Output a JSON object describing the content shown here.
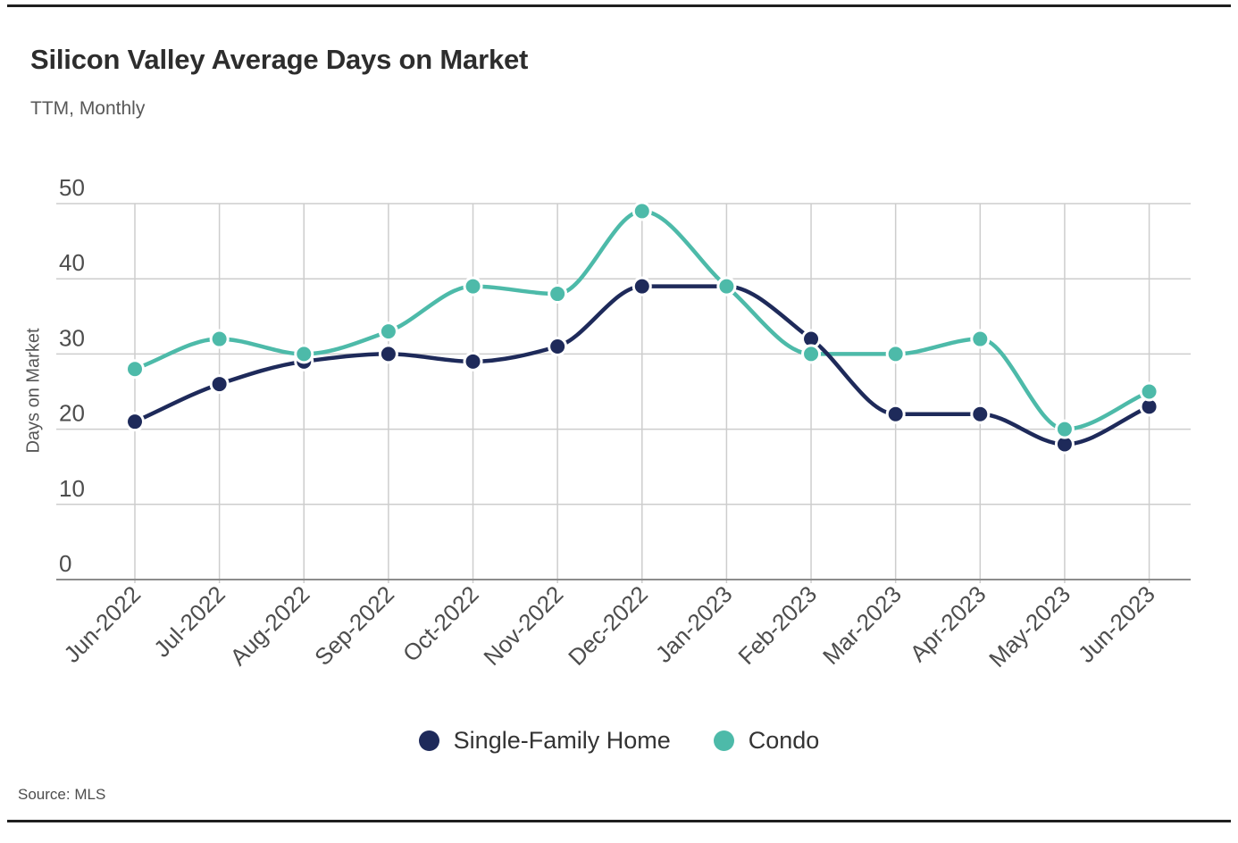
{
  "header": {
    "title": "Silicon Valley Average Days on Market",
    "subtitle": "TTM, Monthly"
  },
  "chart_data": {
    "type": "line",
    "title": "Silicon Valley Average Days on Market",
    "subtitle": "TTM, Monthly",
    "xlabel": "",
    "ylabel": "Days on Market",
    "ylim": [
      0,
      50
    ],
    "yticks": [
      0,
      10,
      20,
      30,
      40,
      50
    ],
    "grid": true,
    "legend_position": "bottom",
    "categories": [
      "Jun-2022",
      "Jul-2022",
      "Aug-2022",
      "Sep-2022",
      "Oct-2022",
      "Nov-2022",
      "Dec-2022",
      "Jan-2023",
      "Feb-2023",
      "Mar-2023",
      "Apr-2023",
      "May-2023",
      "Jun-2023"
    ],
    "series": [
      {
        "name": "Single-Family Home",
        "color": "#1e2a5a",
        "values": [
          21,
          26,
          29,
          30,
          29,
          31,
          39,
          39,
          32,
          22,
          22,
          18,
          23
        ]
      },
      {
        "name": "Condo",
        "color": "#4dbaa9",
        "values": [
          28,
          32,
          30,
          33,
          39,
          38,
          49,
          39,
          30,
          30,
          32,
          20,
          25
        ]
      }
    ]
  },
  "footer": {
    "source_label": "Source:",
    "source_value": "MLS"
  },
  "colors": {
    "grid": "#cdcdcd",
    "axis": "#8c8c8c",
    "tick_text": "#4d4d4d",
    "title_text": "#2d2d2d",
    "rule": "#1f1f1f"
  }
}
